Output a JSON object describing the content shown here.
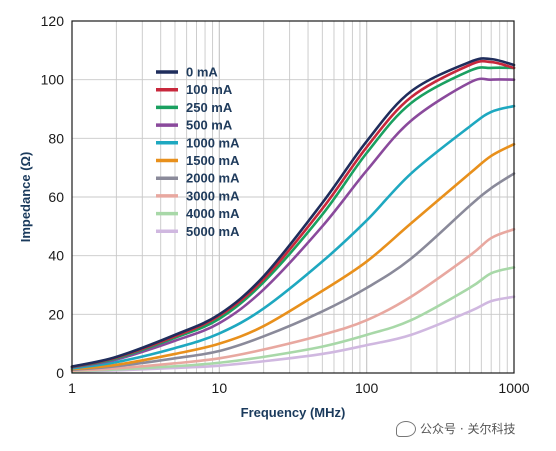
{
  "chart_data": {
    "type": "line",
    "xlabel": "Frequency (MHz)",
    "ylabel": "Impedance (Ω)",
    "xscale": "log",
    "xlim": [
      1,
      1000
    ],
    "ylim": [
      0,
      120
    ],
    "xticks": [
      "1",
      "10",
      "100",
      "1000"
    ],
    "yticks": [
      "0",
      "20",
      "40",
      "60",
      "80",
      "100",
      "120"
    ],
    "grid": true,
    "legend_position": "top-left",
    "x": [
      1,
      2,
      5,
      10,
      20,
      50,
      100,
      200,
      500,
      700,
      1000
    ],
    "series": [
      {
        "name": "0 mA",
        "color": "#1f2d5c",
        "values": [
          2.2,
          5.5,
          13,
          20,
          33,
          58,
          79,
          96,
          106,
          107,
          105
        ]
      },
      {
        "name": "100 mA",
        "color": "#c8283c",
        "values": [
          2.1,
          5.3,
          12.5,
          19.5,
          32,
          56,
          77,
          94,
          105,
          106,
          104
        ]
      },
      {
        "name": "250 mA",
        "color": "#1aa060",
        "values": [
          2,
          5,
          12,
          18.5,
          31,
          54,
          75,
          92,
          103,
          104,
          104
        ]
      },
      {
        "name": "500 mA",
        "color": "#8a4a9c",
        "values": [
          1.9,
          4.6,
          11,
          17,
          28.5,
          50,
          69,
          86,
          99,
          100,
          100
        ]
      },
      {
        "name": "1000 mA",
        "color": "#1ea8c0",
        "values": [
          1.6,
          3.7,
          8.5,
          13.5,
          22,
          38,
          52,
          68,
          84,
          89,
          91
        ]
      },
      {
        "name": "1500 mA",
        "color": "#e8901c",
        "values": [
          1.3,
          2.8,
          6.5,
          10,
          16,
          28,
          38,
          51,
          68,
          74,
          78
        ]
      },
      {
        "name": "2000 mA",
        "color": "#8a8a9a",
        "values": [
          1.1,
          2.3,
          5,
          7.5,
          12.5,
          21,
          29,
          39,
          57,
          63,
          68
        ]
      },
      {
        "name": "3000 mA",
        "color": "#e8a8a0",
        "values": [
          0.8,
          1.6,
          3.3,
          5,
          8,
          13,
          18,
          26,
          40,
          46,
          49
        ]
      },
      {
        "name": "4000 mA",
        "color": "#a8d8a8",
        "values": [
          0.6,
          1.2,
          2.3,
          3.5,
          5.5,
          9,
          13,
          18,
          29,
          34,
          36
        ]
      },
      {
        "name": "5000 mA",
        "color": "#d0b8e0",
        "values": [
          0.5,
          0.9,
          1.7,
          2.5,
          4,
          6.5,
          9.5,
          13,
          21,
          24.5,
          26
        ]
      }
    ]
  },
  "watermark": {
    "text": "公众号 · 关尔科技"
  }
}
